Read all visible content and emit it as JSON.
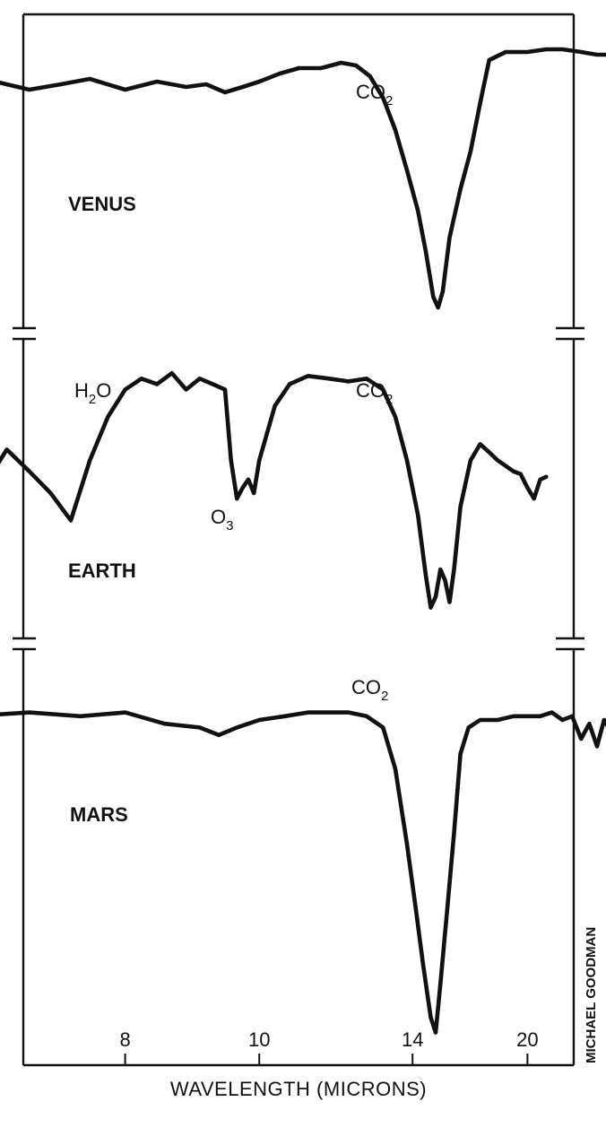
{
  "chart_data": {
    "type": "line",
    "title": "",
    "xlabel": "WAVELENGTH (MICRONS)",
    "ylabel": "",
    "x_scale": "reciprocal",
    "x_ticks": [
      8,
      10,
      14,
      20
    ],
    "grid": false,
    "legend": "none",
    "credit": "MICHAEL GOODMAN",
    "panels": [
      {
        "planet": "VENUS",
        "absorption_labels": [
          {
            "base": "CO",
            "sub": "2",
            "x": 15.5
          }
        ],
        "points": [
          [
            5.5,
            0.92
          ],
          [
            5.8,
            0.93
          ],
          [
            6.1,
            0.85
          ],
          [
            6.4,
            0.86
          ],
          [
            6.7,
            0.88
          ],
          [
            7.0,
            0.85
          ],
          [
            7.3,
            0.87
          ],
          [
            7.6,
            0.89
          ],
          [
            8.0,
            0.85
          ],
          [
            8.4,
            0.88
          ],
          [
            8.8,
            0.86
          ],
          [
            9.1,
            0.87
          ],
          [
            9.4,
            0.84
          ],
          [
            9.7,
            0.86
          ],
          [
            10.0,
            0.88
          ],
          [
            10.4,
            0.91
          ],
          [
            10.8,
            0.93
          ],
          [
            11.3,
            0.93
          ],
          [
            11.8,
            0.95
          ],
          [
            12.2,
            0.94
          ],
          [
            12.6,
            0.9
          ],
          [
            13.0,
            0.82
          ],
          [
            13.4,
            0.7
          ],
          [
            13.8,
            0.55
          ],
          [
            14.2,
            0.4
          ],
          [
            14.5,
            0.25
          ],
          [
            14.8,
            0.08
          ],
          [
            15.0,
            0.04
          ],
          [
            15.2,
            0.1
          ],
          [
            15.5,
            0.3
          ],
          [
            16.0,
            0.48
          ],
          [
            16.5,
            0.62
          ],
          [
            17.0,
            0.8
          ],
          [
            17.5,
            0.96
          ],
          [
            18.5,
            0.99
          ],
          [
            20.0,
            0.99
          ],
          [
            21.5,
            1.0
          ],
          [
            23.0,
            1.0
          ],
          [
            25.0,
            0.99
          ],
          [
            27.0,
            0.98
          ],
          [
            29.0,
            0.98
          ]
        ]
      },
      {
        "planet": "EARTH",
        "absorption_labels": [
          {
            "base": "H",
            "sub": "2",
            "tail": "O",
            "x": 6.7
          },
          {
            "base": "O",
            "sub": "3",
            "x": 9.6
          },
          {
            "base": "CO",
            "sub": "2",
            "x": 15.5
          }
        ],
        "points": [
          [
            5.8,
            0.55
          ],
          [
            6.0,
            0.62
          ],
          [
            6.2,
            0.5
          ],
          [
            6.4,
            0.64
          ],
          [
            6.6,
            0.52
          ],
          [
            6.8,
            0.66
          ],
          [
            7.0,
            0.58
          ],
          [
            7.2,
            0.5
          ],
          [
            7.4,
            0.4
          ],
          [
            7.6,
            0.62
          ],
          [
            7.8,
            0.78
          ],
          [
            8.0,
            0.88
          ],
          [
            8.2,
            0.92
          ],
          [
            8.4,
            0.9
          ],
          [
            8.6,
            0.94
          ],
          [
            8.8,
            0.88
          ],
          [
            9.0,
            0.92
          ],
          [
            9.2,
            0.9
          ],
          [
            9.4,
            0.88
          ],
          [
            9.5,
            0.62
          ],
          [
            9.6,
            0.48
          ],
          [
            9.7,
            0.52
          ],
          [
            9.8,
            0.55
          ],
          [
            9.9,
            0.5
          ],
          [
            10.0,
            0.62
          ],
          [
            10.3,
            0.82
          ],
          [
            10.6,
            0.9
          ],
          [
            11.0,
            0.93
          ],
          [
            11.5,
            0.92
          ],
          [
            12.0,
            0.91
          ],
          [
            12.5,
            0.92
          ],
          [
            13.0,
            0.88
          ],
          [
            13.4,
            0.78
          ],
          [
            13.8,
            0.62
          ],
          [
            14.2,
            0.42
          ],
          [
            14.5,
            0.2
          ],
          [
            14.7,
            0.08
          ],
          [
            14.9,
            0.12
          ],
          [
            15.1,
            0.22
          ],
          [
            15.3,
            0.18
          ],
          [
            15.5,
            0.1
          ],
          [
            15.7,
            0.22
          ],
          [
            16.0,
            0.45
          ],
          [
            16.5,
            0.62
          ],
          [
            17.0,
            0.68
          ],
          [
            17.5,
            0.65
          ],
          [
            18.0,
            0.62
          ],
          [
            18.5,
            0.6
          ],
          [
            19.0,
            0.58
          ],
          [
            19.5,
            0.57
          ],
          [
            20.0,
            0.52
          ],
          [
            20.5,
            0.48
          ],
          [
            21.0,
            0.55
          ],
          [
            21.5,
            0.56
          ]
        ]
      },
      {
        "planet": "MARS",
        "absorption_labels": [
          {
            "base": "CO",
            "sub": "2",
            "x": 15.2
          }
        ],
        "points": [
          [
            5.5,
            0.87
          ],
          [
            6.0,
            0.87
          ],
          [
            6.5,
            0.86
          ],
          [
            7.0,
            0.87
          ],
          [
            7.5,
            0.86
          ],
          [
            8.0,
            0.87
          ],
          [
            8.5,
            0.84
          ],
          [
            9.0,
            0.83
          ],
          [
            9.3,
            0.81
          ],
          [
            9.6,
            0.83
          ],
          [
            10.0,
            0.85
          ],
          [
            10.5,
            0.86
          ],
          [
            11.0,
            0.87
          ],
          [
            11.5,
            0.87
          ],
          [
            12.0,
            0.87
          ],
          [
            12.5,
            0.86
          ],
          [
            13.0,
            0.83
          ],
          [
            13.4,
            0.72
          ],
          [
            13.8,
            0.52
          ],
          [
            14.1,
            0.36
          ],
          [
            14.4,
            0.2
          ],
          [
            14.7,
            0.06
          ],
          [
            14.9,
            0.02
          ],
          [
            15.1,
            0.15
          ],
          [
            15.4,
            0.35
          ],
          [
            15.7,
            0.55
          ],
          [
            16.0,
            0.76
          ],
          [
            16.4,
            0.83
          ],
          [
            17.0,
            0.85
          ],
          [
            18.0,
            0.85
          ],
          [
            19.0,
            0.86
          ],
          [
            20.0,
            0.86
          ],
          [
            21.0,
            0.86
          ],
          [
            22.0,
            0.87
          ],
          [
            23.0,
            0.85
          ],
          [
            24.0,
            0.86
          ],
          [
            25.0,
            0.8
          ],
          [
            26.0,
            0.84
          ],
          [
            27.0,
            0.78
          ],
          [
            28.0,
            0.85
          ],
          [
            29.0,
            0.82
          ],
          [
            30.0,
            0.86
          ]
        ]
      }
    ]
  }
}
